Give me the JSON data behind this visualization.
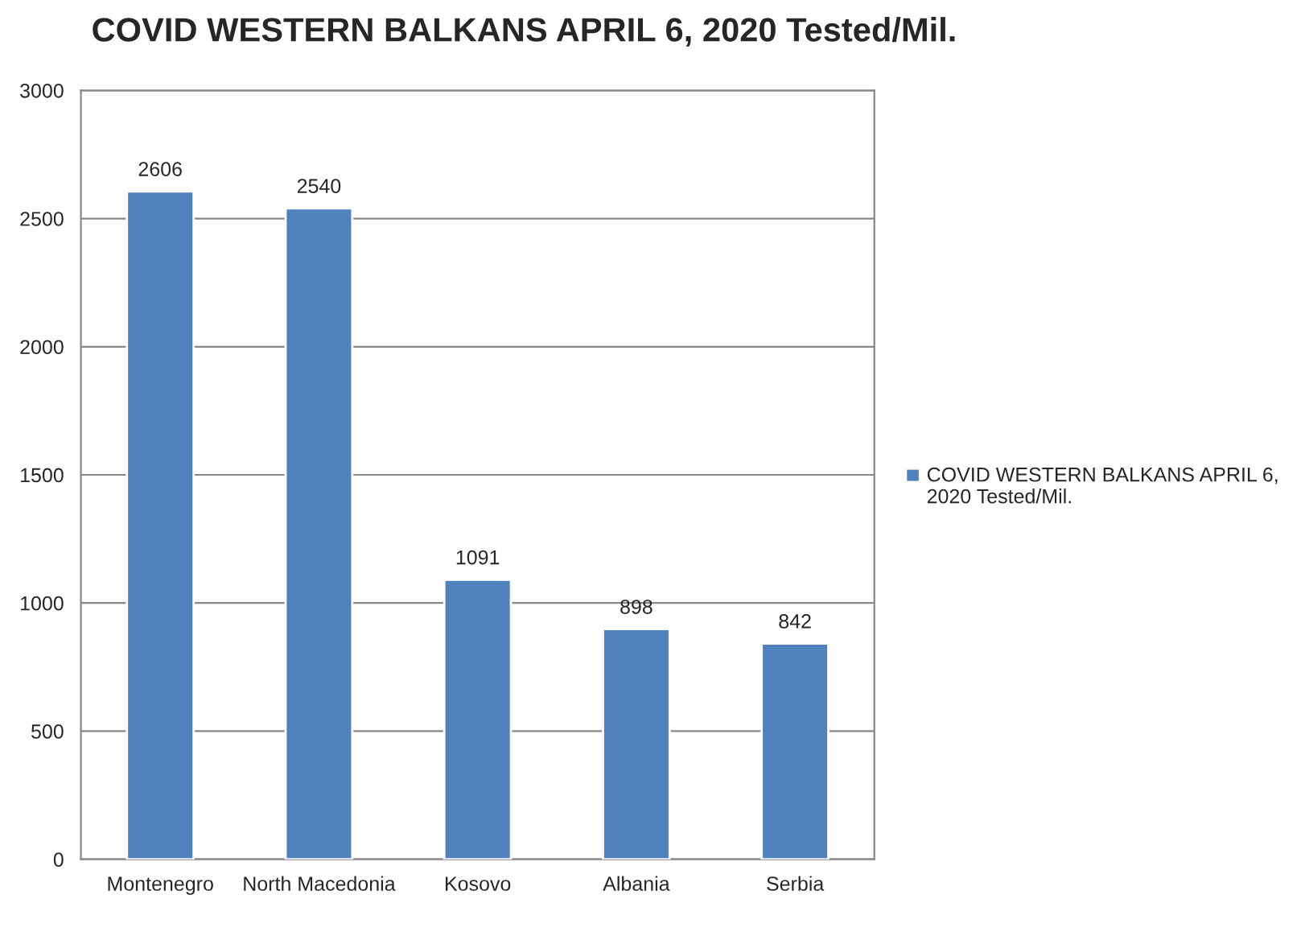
{
  "chart_data": {
    "type": "bar",
    "title": "COVID WESTERN BALKANS APRIL 6, 2020 Tested/Mil.",
    "categories": [
      "Montenegro",
      "North Macedonia",
      "Kosovo",
      "Albania",
      "Serbia"
    ],
    "series": [
      {
        "name": "COVID WESTERN BALKANS APRIL 6, 2020 Tested/Mil.",
        "color": "#4f81bd",
        "values": [
          2606,
          2540,
          1091,
          898,
          842
        ]
      }
    ],
    "ylim": [
      0,
      3000
    ],
    "yticks": [
      0,
      500,
      1000,
      1500,
      2000,
      2500,
      3000
    ],
    "grid": "y",
    "legend": "right",
    "data_labels": true
  }
}
